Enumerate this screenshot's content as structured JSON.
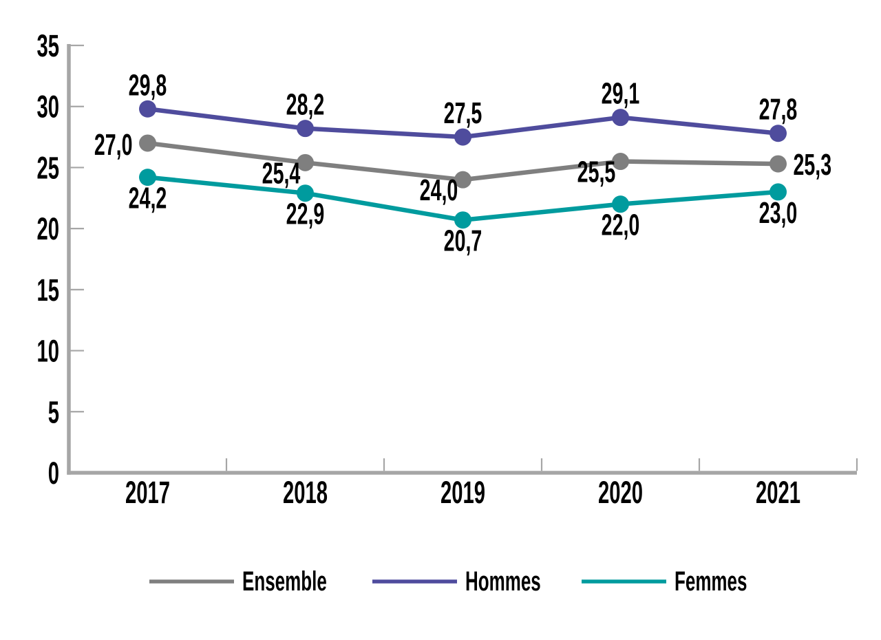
{
  "chart_data": {
    "type": "line",
    "title": "",
    "x_labels": [
      "2017",
      "2018",
      "2019",
      "2020",
      "2021"
    ],
    "series": [
      {
        "name": "Ensemble",
        "color": "#7f7f7f",
        "values": [
          27.0,
          25.4,
          24.0,
          25.5,
          25.3
        ],
        "labels": [
          "27,0",
          "25,4",
          "24,0",
          "25,5",
          "25,3"
        ],
        "label_placement": [
          "left",
          "below-left",
          "below-left",
          "below-left",
          "right"
        ]
      },
      {
        "name": "Hommes",
        "color": "#4f4c9d",
        "values": [
          29.8,
          28.2,
          27.5,
          29.1,
          27.8
        ],
        "labels": [
          "29,8",
          "28,2",
          "27,5",
          "29,1",
          "27,8"
        ],
        "label_placement": [
          "above",
          "above",
          "above",
          "above",
          "above"
        ]
      },
      {
        "name": "Femmes",
        "color": "#009b9e",
        "values": [
          24.2,
          22.9,
          20.7,
          22.0,
          23.0
        ],
        "labels": [
          "24,2",
          "22,9",
          "20,7",
          "22,0",
          "23,0"
        ],
        "label_placement": [
          "below",
          "below",
          "below",
          "below",
          "below"
        ]
      }
    ],
    "ylim": [
      0,
      35
    ],
    "ytick_step": 5,
    "y_tick_labels": [
      "0",
      "5",
      "10",
      "15",
      "20",
      "25",
      "30",
      "35"
    ],
    "x_tick_style": "between-categories",
    "grid": "off",
    "legend": {
      "position": "bottom",
      "items": [
        "Ensemble",
        "Hommes",
        "Femmes"
      ]
    },
    "axis_color": "#a6a6a6",
    "text_color": "#000000",
    "background": "#ffffff"
  }
}
